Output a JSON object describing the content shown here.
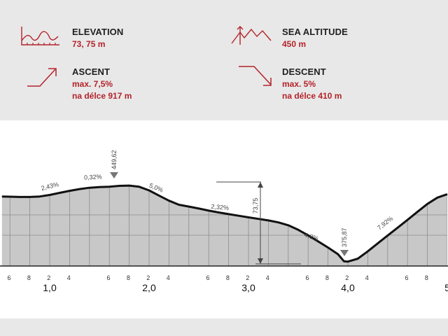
{
  "stats": {
    "elevation": {
      "title": "ELEVATION",
      "value": "73, 75 m",
      "icon": "elevation-profile-icon"
    },
    "sea_altitude": {
      "title": "SEA ALTITUDE",
      "value": "450 m",
      "icon": "mountain-peaks-icon"
    },
    "ascent": {
      "title": "ASCENT",
      "value": "max. 7,5%",
      "value2": "na délce 917 m",
      "icon": "ascent-arrow-icon"
    },
    "descent": {
      "title": "DESCENT",
      "value": "max. 5%",
      "value2": "na délce 410 m",
      "icon": "descent-arrow-icon"
    }
  },
  "colors": {
    "accent": "#b3232a",
    "fill": "#c8c8c8",
    "line": "#111111",
    "panel": "#e9e8e8"
  },
  "chart_data": {
    "type": "area",
    "xlabel": "",
    "ylabel": "",
    "xlim": [
      0.52,
      5.0
    ],
    "ylim": [
      375,
      451
    ],
    "x": [
      0.52,
      0.6,
      0.7,
      0.8,
      0.9,
      1.0,
      1.1,
      1.2,
      1.3,
      1.4,
      1.5,
      1.6,
      1.7,
      1.8,
      1.9,
      2.0,
      2.1,
      2.2,
      2.3,
      2.4,
      2.5,
      2.6,
      2.7,
      2.8,
      2.9,
      3.0,
      3.1,
      3.2,
      3.3,
      3.4,
      3.5,
      3.6,
      3.7,
      3.8,
      3.9,
      3.96,
      4.0,
      4.1,
      4.2,
      4.3,
      4.4,
      4.5,
      4.6,
      4.7,
      4.8,
      4.9,
      5.0
    ],
    "y": [
      439,
      438.8,
      438.5,
      438.5,
      439,
      440.5,
      442.5,
      444.5,
      446.2,
      447.5,
      448.1,
      448.5,
      449.3,
      449.6,
      448.4,
      444.9,
      439.9,
      434.9,
      431,
      429.2,
      427.3,
      425.3,
      423.5,
      421.9,
      420.3,
      418.8,
      417.3,
      415.8,
      413.9,
      411.1,
      406.7,
      401.3,
      395.5,
      389.5,
      383.1,
      376.2,
      375.9,
      378.7,
      385.8,
      393.5,
      401.2,
      408.7,
      416.3,
      424.1,
      431.8,
      437.9,
      441.2
    ],
    "km_labels": [
      "1,0",
      "2,0",
      "3,0",
      "4,0",
      "5"
    ],
    "minor_ticks": [
      "6",
      "8",
      "2",
      "4",
      "6",
      "8",
      "2",
      "4",
      "6",
      "8",
      "2",
      "4",
      "6",
      "8",
      "2",
      "4",
      "6",
      "8"
    ],
    "grades": [
      "2,43%",
      "0,32%",
      "5,0%",
      "2,32%",
      "4,8%",
      "7,92%"
    ],
    "max_label": "449,62",
    "min_label": "375,87",
    "diff_label": "73,75"
  }
}
